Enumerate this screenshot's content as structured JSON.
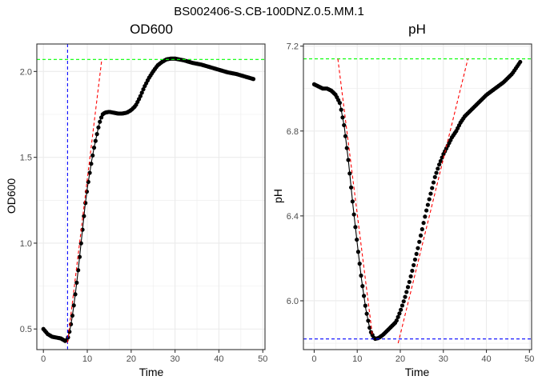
{
  "figure": {
    "title": "BS002406-S.CB-100DNZ.0.5.MM.1",
    "colors": {
      "points": "#000000",
      "fit": "#000000",
      "tangent": "#ff0000",
      "horizontal_ref_high": "#00ff00",
      "horizontal_ref_low": "#0000ff",
      "vertical_ref": "#0000ff",
      "grid": "#ebebeb",
      "panel_border": "#333333"
    }
  },
  "chart_data": [
    {
      "type": "scatter",
      "title": "OD600",
      "xlabel": "Time",
      "ylabel": "OD600",
      "xlim": [
        -1.5,
        50.5
      ],
      "ylim": [
        0.38,
        2.16
      ],
      "x_ticks": [
        0,
        10,
        20,
        30,
        40,
        50
      ],
      "y_ticks": [
        0.5,
        1.0,
        1.5,
        2.0
      ],
      "y_tick_labels": [
        "0.5",
        "1.0",
        "1.5",
        "2.0"
      ],
      "grid": true,
      "legend": "none",
      "curve_knots": [
        [
          0,
          0.5
        ],
        [
          1,
          0.47
        ],
        [
          2,
          0.455
        ],
        [
          3,
          0.45
        ],
        [
          4,
          0.445
        ],
        [
          5,
          0.43
        ],
        [
          5.5,
          0.44
        ],
        [
          6,
          0.49
        ],
        [
          6.5,
          0.56
        ],
        [
          7,
          0.65
        ],
        [
          7.5,
          0.75
        ],
        [
          8,
          0.86
        ],
        [
          8.5,
          0.98
        ],
        [
          9,
          1.1
        ],
        [
          9.5,
          1.22
        ],
        [
          10,
          1.32
        ],
        [
          10.5,
          1.4
        ],
        [
          11,
          1.48
        ],
        [
          11.5,
          1.55
        ],
        [
          12,
          1.61
        ],
        [
          12.5,
          1.67
        ],
        [
          13,
          1.72
        ],
        [
          13.5,
          1.75
        ],
        [
          14,
          1.76
        ],
        [
          15,
          1.765
        ],
        [
          16,
          1.76
        ],
        [
          17,
          1.755
        ],
        [
          18,
          1.755
        ],
        [
          19,
          1.76
        ],
        [
          20,
          1.775
        ],
        [
          21,
          1.8
        ],
        [
          22,
          1.85
        ],
        [
          23,
          1.91
        ],
        [
          24,
          1.96
        ],
        [
          25,
          2.0
        ],
        [
          26,
          2.035
        ],
        [
          27,
          2.055
        ],
        [
          28,
          2.07
        ],
        [
          29,
          2.075
        ],
        [
          30,
          2.075
        ],
        [
          31,
          2.07
        ],
        [
          32,
          2.065
        ],
        [
          34,
          2.05
        ],
        [
          36,
          2.04
        ],
        [
          38,
          2.025
        ],
        [
          40,
          2.01
        ],
        [
          42,
          1.995
        ],
        [
          44,
          1.985
        ],
        [
          46,
          1.97
        ],
        [
          48,
          1.955
        ]
      ],
      "point_step": 0.33,
      "ref_h_high": 2.07,
      "ref_v": 5.5,
      "tangent": [
        [
          5.5,
          0.42
        ],
        [
          13.3,
          2.07
        ]
      ]
    },
    {
      "type": "scatter",
      "title": "pH",
      "xlabel": "Time",
      "ylabel": "pH",
      "xlim": [
        -2.5,
        50.5
      ],
      "ylim": [
        5.77,
        7.21
      ],
      "x_ticks": [
        0,
        10,
        20,
        30,
        40,
        50
      ],
      "y_ticks": [
        6.0,
        6.4,
        6.8,
        7.2
      ],
      "y_tick_labels": [
        "6.0",
        "6.4",
        "6.8",
        "7.2"
      ],
      "grid": true,
      "legend": "none",
      "curve_knots": [
        [
          0,
          7.02
        ],
        [
          1,
          7.01
        ],
        [
          2,
          7.0
        ],
        [
          3,
          7.0
        ],
        [
          4,
          6.99
        ],
        [
          5,
          6.97
        ],
        [
          6,
          6.93
        ],
        [
          7,
          6.82
        ],
        [
          8,
          6.65
        ],
        [
          9,
          6.45
        ],
        [
          10,
          6.27
        ],
        [
          11,
          6.1
        ],
        [
          12,
          5.96
        ],
        [
          13,
          5.86
        ],
        [
          14,
          5.82
        ],
        [
          15,
          5.825
        ],
        [
          16,
          5.84
        ],
        [
          17,
          5.86
        ],
        [
          18,
          5.88
        ],
        [
          19,
          5.9
        ],
        [
          20,
          5.95
        ],
        [
          21,
          6.01
        ],
        [
          22,
          6.08
        ],
        [
          23,
          6.16
        ],
        [
          24,
          6.24
        ],
        [
          25,
          6.33
        ],
        [
          26,
          6.42
        ],
        [
          27,
          6.5
        ],
        [
          28,
          6.58
        ],
        [
          29,
          6.64
        ],
        [
          30,
          6.69
        ],
        [
          31,
          6.73
        ],
        [
          32,
          6.77
        ],
        [
          33,
          6.8
        ],
        [
          34,
          6.84
        ],
        [
          35,
          6.87
        ],
        [
          36,
          6.89
        ],
        [
          38,
          6.93
        ],
        [
          40,
          6.97
        ],
        [
          42,
          7.0
        ],
        [
          44,
          7.03
        ],
        [
          46,
          7.07
        ],
        [
          48,
          7.13
        ]
      ],
      "point_step": 0.33,
      "fit_range": [
        0,
        15
      ],
      "ref_h_high": 7.14,
      "ref_h_low": 5.82,
      "tangents": [
        [
          [
            5.5,
            7.14
          ],
          [
            13.5,
            5.84
          ]
        ],
        [
          [
            19.5,
            5.8
          ],
          [
            35.7,
            7.14
          ]
        ]
      ]
    }
  ]
}
